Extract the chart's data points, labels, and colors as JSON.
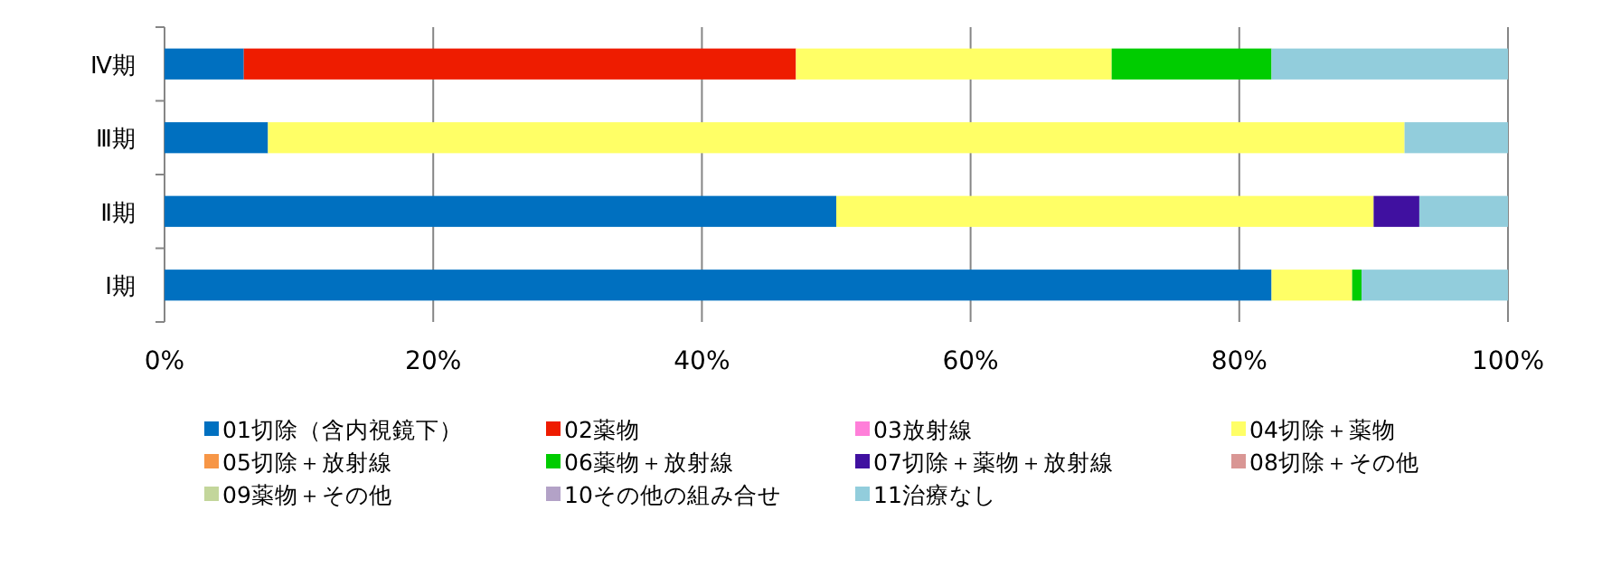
{
  "chart_data": {
    "type": "bar",
    "orientation": "horizontal",
    "stacked": true,
    "categories": [
      "Ⅳ期",
      "Ⅲ期",
      "Ⅱ期",
      "Ⅰ期"
    ],
    "xlim": [
      0,
      100
    ],
    "xticks": [
      {
        "value": 0,
        "label": "0%"
      },
      {
        "value": 20,
        "label": "20%"
      },
      {
        "value": 40,
        "label": "40%"
      },
      {
        "value": 60,
        "label": "60%"
      },
      {
        "value": 80,
        "label": "80%"
      },
      {
        "value": 100,
        "label": "100%"
      }
    ],
    "grid": "x",
    "legend": "bottom",
    "series": [
      {
        "name": "01切除（含内視鏡下）",
        "color": "#0070c0",
        "values": [
          5.9,
          7.7,
          50.0,
          82.4
        ]
      },
      {
        "name": "02薬物",
        "color": "#ee1c00",
        "values": [
          41.1,
          0,
          0,
          0
        ]
      },
      {
        "name": "03放射線",
        "color": "#ff7fd9",
        "values": [
          0,
          0,
          0,
          0
        ]
      },
      {
        "name": "04切除＋薬物",
        "color": "#ffff66",
        "values": [
          23.5,
          84.6,
          40.0,
          6.0
        ]
      },
      {
        "name": "05切除＋放射線",
        "color": "#f79646",
        "values": [
          0,
          0,
          0,
          0
        ]
      },
      {
        "name": "06薬物＋放射線",
        "color": "#00cc00",
        "values": [
          11.9,
          0,
          0,
          0.7
        ]
      },
      {
        "name": "07切除＋薬物＋放射線",
        "color": "#4010a0",
        "values": [
          0,
          0,
          3.4,
          0
        ]
      },
      {
        "name": "08切除＋その他",
        "color": "#d99694",
        "values": [
          0,
          0,
          0,
          0
        ]
      },
      {
        "name": "09薬物＋その他",
        "color": "#c3d69b",
        "values": [
          0,
          0,
          0,
          0
        ]
      },
      {
        "name": "10その他の組み合せ",
        "color": "#b3a2c7",
        "values": [
          0,
          0,
          0,
          0
        ]
      },
      {
        "name": "11治療なし",
        "color": "#92cddc",
        "values": [
          17.6,
          7.7,
          6.6,
          10.9
        ]
      }
    ]
  }
}
